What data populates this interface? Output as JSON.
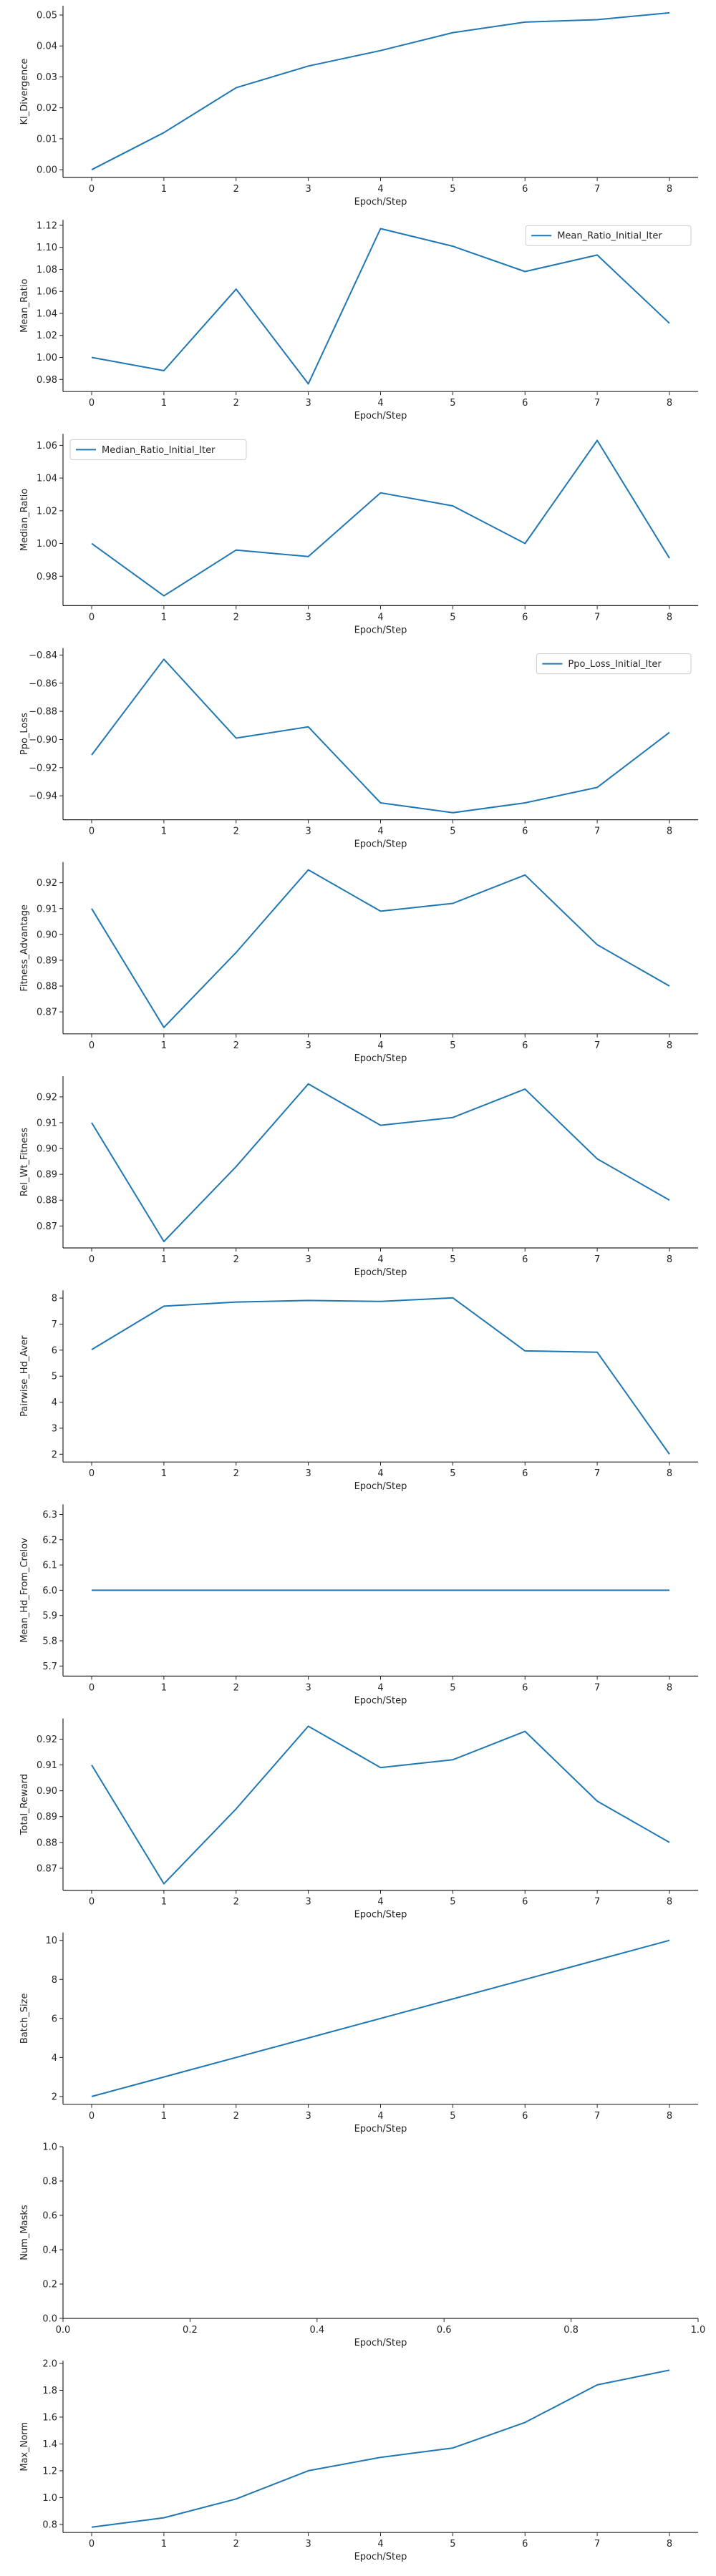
{
  "colors": {
    "series": "#1f77b4",
    "axis": "#262626",
    "background": "#ffffff"
  },
  "chart_data": [
    {
      "type": "line",
      "xlabel": "Epoch/Step",
      "ylabel": "Kl_Divergence",
      "x": [
        0,
        1,
        2,
        3,
        4,
        5,
        6,
        7,
        8
      ],
      "xticks": [
        "0",
        "1",
        "2",
        "3",
        "4",
        "5",
        "6",
        "7",
        "8"
      ],
      "ylim": [
        -0.0025,
        0.053
      ],
      "yticks": [
        "0.00",
        "0.01",
        "0.02",
        "0.03",
        "0.04",
        "0.05"
      ],
      "series": [
        {
          "values": [
            0.0,
            0.012,
            0.0265,
            0.0335,
            0.0385,
            0.0443,
            0.0477,
            0.0485,
            0.0507
          ]
        }
      ],
      "legend": null
    },
    {
      "type": "line",
      "xlabel": "Epoch/Step",
      "ylabel": "Mean_Ratio",
      "x": [
        0,
        1,
        2,
        3,
        4,
        5,
        6,
        7,
        8
      ],
      "xticks": [
        "0",
        "1",
        "2",
        "3",
        "4",
        "5",
        "6",
        "7",
        "8"
      ],
      "ylim": [
        0.969,
        1.125
      ],
      "yticks": [
        "0.98",
        "1.00",
        "1.02",
        "1.04",
        "1.06",
        "1.08",
        "1.10",
        "1.12"
      ],
      "series": [
        {
          "name": "Mean_Ratio_Initial_Iter",
          "values": [
            1.0,
            0.988,
            1.062,
            0.976,
            1.117,
            1.101,
            1.078,
            1.093,
            1.031
          ]
        }
      ],
      "legend": "top-right"
    },
    {
      "type": "line",
      "xlabel": "Epoch/Step",
      "ylabel": "Median_Ratio",
      "x": [
        0,
        1,
        2,
        3,
        4,
        5,
        6,
        7,
        8
      ],
      "xticks": [
        "0",
        "1",
        "2",
        "3",
        "4",
        "5",
        "6",
        "7",
        "8"
      ],
      "ylim": [
        0.962,
        1.067
      ],
      "yticks": [
        "0.98",
        "1.00",
        "1.02",
        "1.04",
        "1.06"
      ],
      "series": [
        {
          "name": "Median_Ratio_Initial_Iter",
          "values": [
            1.0,
            0.968,
            0.996,
            0.992,
            1.031,
            1.023,
            1.0,
            1.063,
            0.991
          ]
        }
      ],
      "legend": "top-left"
    },
    {
      "type": "line",
      "xlabel": "Epoch/Step",
      "ylabel": "Ppo_Loss",
      "x": [
        0,
        1,
        2,
        3,
        4,
        5,
        6,
        7,
        8
      ],
      "xticks": [
        "0",
        "1",
        "2",
        "3",
        "4",
        "5",
        "6",
        "7",
        "8"
      ],
      "ylim": [
        -0.957,
        -0.835
      ],
      "yticks": [
        "-0.94",
        "-0.92",
        "-0.90",
        "-0.88",
        "-0.86",
        "-0.84"
      ],
      "series": [
        {
          "name": "Ppo_Loss_Initial_Iter",
          "values": [
            -0.911,
            -0.843,
            -0.899,
            -0.891,
            -0.945,
            -0.952,
            -0.945,
            -0.934,
            -0.895
          ]
        }
      ],
      "legend": "top-right"
    },
    {
      "type": "line",
      "xlabel": "Epoch/Step",
      "ylabel": "Fitness_Advantage",
      "x": [
        0,
        1,
        2,
        3,
        4,
        5,
        6,
        7,
        8
      ],
      "xticks": [
        "0",
        "1",
        "2",
        "3",
        "4",
        "5",
        "6",
        "7",
        "8"
      ],
      "ylim": [
        0.8615,
        0.928
      ],
      "yticks": [
        "0.87",
        "0.88",
        "0.89",
        "0.90",
        "0.91",
        "0.92"
      ],
      "series": [
        {
          "values": [
            0.91,
            0.864,
            0.893,
            0.925,
            0.909,
            0.912,
            0.923,
            0.896,
            0.88
          ]
        }
      ],
      "legend": null
    },
    {
      "type": "line",
      "xlabel": "Epoch/Step",
      "ylabel": "Rel_Wt_Fitness",
      "x": [
        0,
        1,
        2,
        3,
        4,
        5,
        6,
        7,
        8
      ],
      "xticks": [
        "0",
        "1",
        "2",
        "3",
        "4",
        "5",
        "6",
        "7",
        "8"
      ],
      "ylim": [
        0.8615,
        0.928
      ],
      "yticks": [
        "0.87",
        "0.88",
        "0.89",
        "0.90",
        "0.91",
        "0.92"
      ],
      "series": [
        {
          "values": [
            0.91,
            0.864,
            0.893,
            0.925,
            0.909,
            0.912,
            0.923,
            0.896,
            0.88
          ]
        }
      ],
      "legend": null
    },
    {
      "type": "line",
      "xlabel": "Epoch/Step",
      "ylabel": "Pairwise_Hd_Aver",
      "x": [
        0,
        1,
        2,
        3,
        4,
        5,
        6,
        7,
        8
      ],
      "xticks": [
        "0",
        "1",
        "2",
        "3",
        "4",
        "5",
        "6",
        "7",
        "8"
      ],
      "ylim": [
        1.7,
        8.3
      ],
      "yticks": [
        "2",
        "3",
        "4",
        "5",
        "6",
        "7",
        "8"
      ],
      "series": [
        {
          "values": [
            6.02,
            7.69,
            7.85,
            7.91,
            7.87,
            8.01,
            5.97,
            5.92,
            2.0
          ]
        }
      ],
      "legend": null
    },
    {
      "type": "line",
      "xlabel": "Epoch/Step",
      "ylabel": "Mean_Hd_From_Crelov",
      "x": [
        0,
        1,
        2,
        3,
        4,
        5,
        6,
        7,
        8
      ],
      "xticks": [
        "0",
        "1",
        "2",
        "3",
        "4",
        "5",
        "6",
        "7",
        "8"
      ],
      "ylim": [
        5.66,
        6.34
      ],
      "yticks": [
        "5.7",
        "5.8",
        "5.9",
        "6.0",
        "6.1",
        "6.2",
        "6.3"
      ],
      "series": [
        {
          "values": [
            6.0,
            6.0,
            6.0,
            6.0,
            6.0,
            6.0,
            6.0,
            6.0,
            6.0
          ]
        }
      ],
      "legend": null
    },
    {
      "type": "line",
      "xlabel": "Epoch/Step",
      "ylabel": "Total_Reward",
      "x": [
        0,
        1,
        2,
        3,
        4,
        5,
        6,
        7,
        8
      ],
      "xticks": [
        "0",
        "1",
        "2",
        "3",
        "4",
        "5",
        "6",
        "7",
        "8"
      ],
      "ylim": [
        0.8615,
        0.928
      ],
      "yticks": [
        "0.87",
        "0.88",
        "0.89",
        "0.90",
        "0.91",
        "0.92"
      ],
      "series": [
        {
          "values": [
            0.91,
            0.864,
            0.893,
            0.925,
            0.909,
            0.912,
            0.923,
            0.896,
            0.88
          ]
        }
      ],
      "legend": null
    },
    {
      "type": "line",
      "xlabel": "Epoch/Step",
      "ylabel": "Batch_Size",
      "x": [
        0,
        1,
        2,
        3,
        4,
        5,
        6,
        7,
        8
      ],
      "xticks": [
        "0",
        "1",
        "2",
        "3",
        "4",
        "5",
        "6",
        "7",
        "8"
      ],
      "ylim": [
        1.6,
        10.4
      ],
      "yticks": [
        "2",
        "4",
        "6",
        "8",
        "10"
      ],
      "series": [
        {
          "values": [
            2,
            3,
            4,
            5,
            6,
            7,
            8,
            9,
            10
          ]
        }
      ],
      "legend": null
    },
    {
      "type": "line",
      "xlabel": "Epoch/Step",
      "ylabel": "Num_Masks",
      "x": [],
      "xticks": [
        "0.0",
        "0.2",
        "0.4",
        "0.6",
        "0.8",
        "1.0"
      ],
      "xtick_values": [
        0.0,
        0.2,
        0.4,
        0.6,
        0.8,
        1.0
      ],
      "xlim": [
        0.0,
        1.0
      ],
      "ylim": [
        0.0,
        1.0
      ],
      "yticks": [
        "0.0",
        "0.2",
        "0.4",
        "0.6",
        "0.8",
        "1.0"
      ],
      "series": [],
      "legend": null
    },
    {
      "type": "line",
      "xlabel": "Epoch/Step",
      "ylabel": "Max_Norm",
      "x": [
        0,
        1,
        2,
        3,
        4,
        5,
        6,
        7,
        8
      ],
      "xticks": [
        "0",
        "1",
        "2",
        "3",
        "4",
        "5",
        "6",
        "7",
        "8"
      ],
      "ylim": [
        0.74,
        2.02
      ],
      "yticks": [
        "0.8",
        "1.0",
        "1.2",
        "1.4",
        "1.6",
        "1.8",
        "2.0"
      ],
      "series": [
        {
          "values": [
            0.78,
            0.85,
            0.99,
            1.2,
            1.3,
            1.37,
            1.56,
            1.84,
            1.95
          ]
        }
      ],
      "legend": null
    }
  ]
}
